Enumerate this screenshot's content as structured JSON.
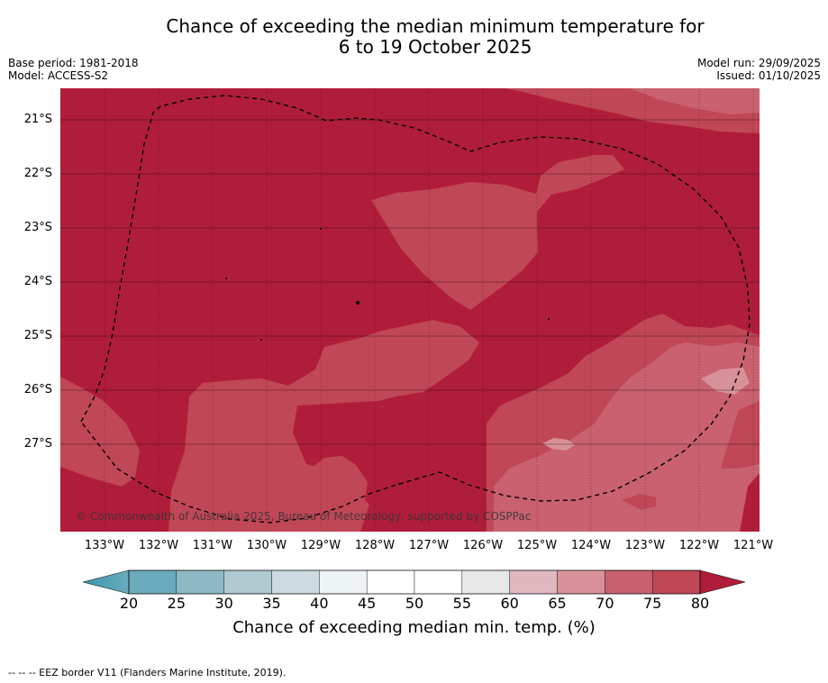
{
  "title_line1": "Chance of exceeding the median minimum temperature for",
  "title_line2": "6 to 19 October 2025",
  "base_period": "Base period: 1981-2018",
  "model": "Model: ACCESS-S2",
  "model_run": "Model run: 29/09/2025",
  "issued": "Issued: 01/10/2025",
  "copyright": "© Commonwealth of Australia 2025, Bureau of Meteorology, supported by COSPPac",
  "lat_labels": [
    "21°S",
    "22°S",
    "23°S",
    "24°S",
    "25°S",
    "26°S",
    "27°S"
  ],
  "lon_labels": [
    "133°W",
    "132°W",
    "131°W",
    "130°W",
    "129°W",
    "128°W",
    "127°W",
    "126°W",
    "125°W",
    "124°W",
    "123°W",
    "122°W",
    "121°W"
  ],
  "colorbar_ticks": [
    "20",
    "25",
    "30",
    "35",
    "40",
    "45",
    "50",
    "55",
    "60",
    "65",
    "70",
    "75",
    "80"
  ],
  "colorbar_colors": [
    "#6aabbd",
    "#8ebac6",
    "#aec9cf",
    "#cddbe0",
    "#eef3f5",
    "#ffffff",
    "#ffffff",
    "#e8e8e8",
    "#e0b8bf",
    "#d99199",
    "#c9616f",
    "#c04756"
  ],
  "colorbar_low_color": "#3a97ad",
  "colorbar_high_color": "#b01d3a",
  "colorbar_title": "Chance of exceeding median min. temp. (%)",
  "footer": "-- -- -- EEZ border V11 (Flanders Marine Institute, 2019).",
  "map_colors": {
    "c80": "#b01d3a",
    "c75": "#c04756",
    "c70": "#c9616f",
    "c65": "#d99199"
  }
}
